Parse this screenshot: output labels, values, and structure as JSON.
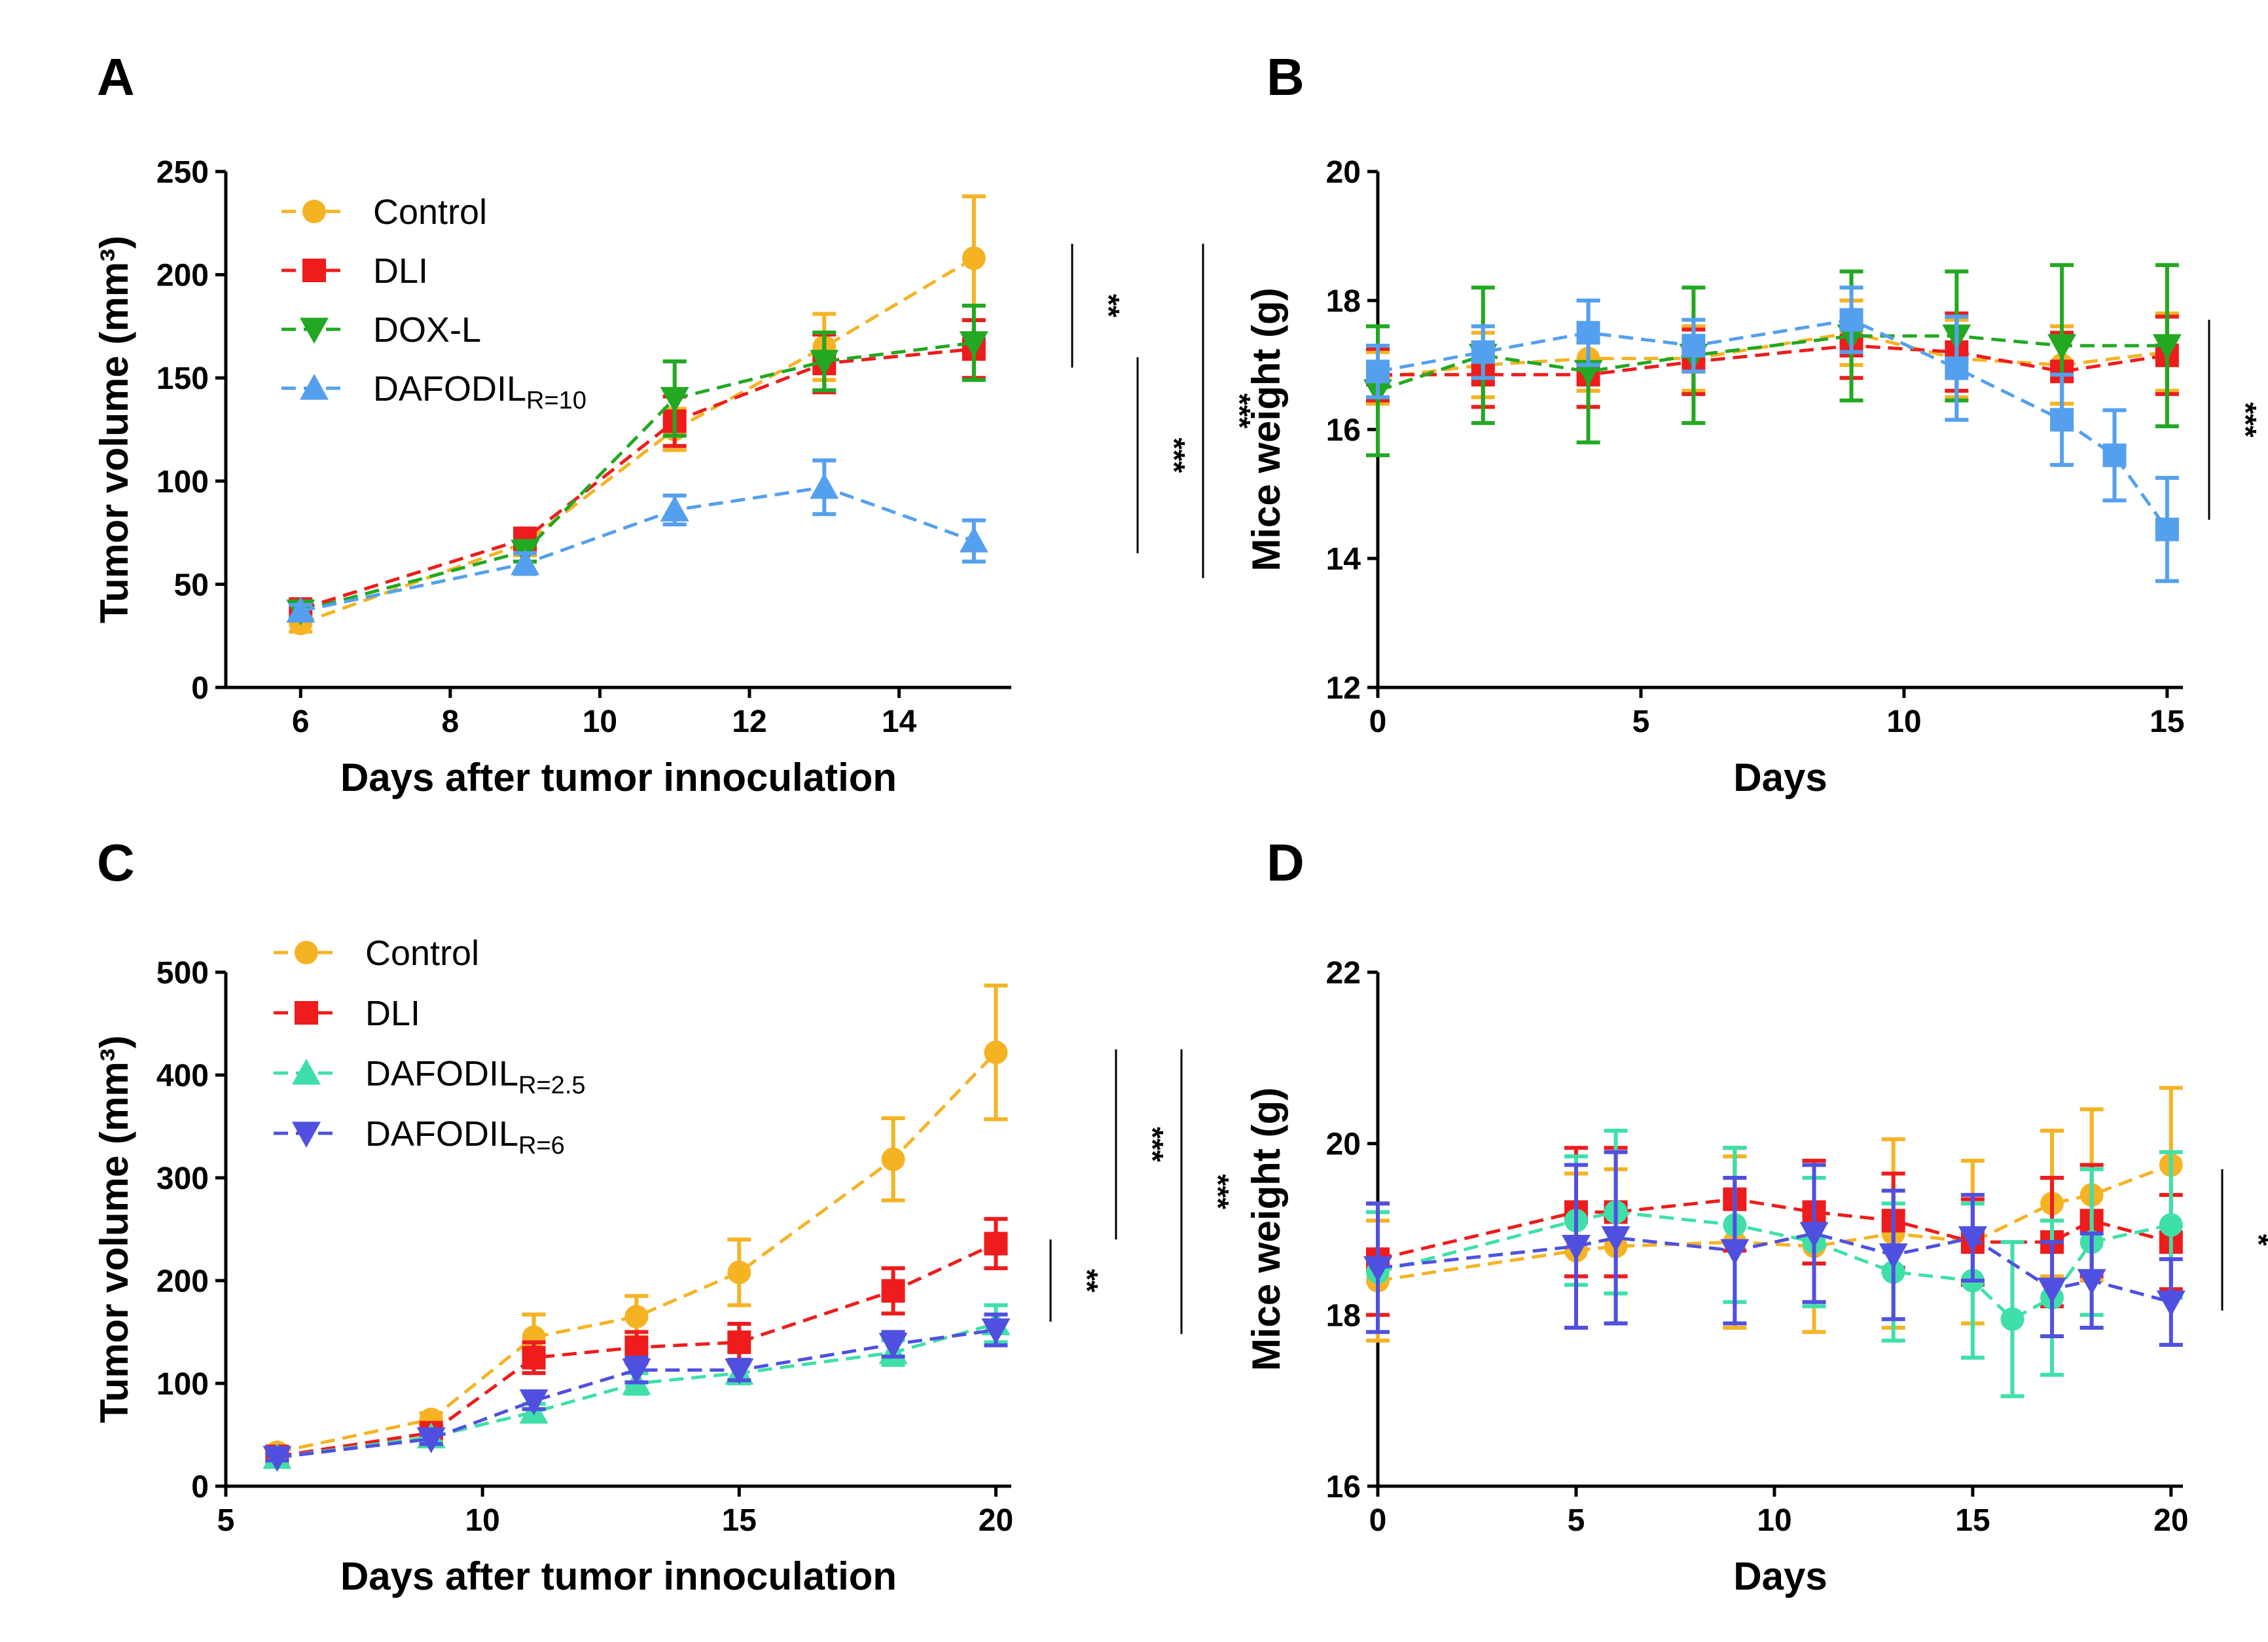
{
  "chart_data": [
    {
      "panel_label": "A",
      "type": "line",
      "xlabel": "Days after tumor innoculation",
      "ylabel": "Tumor volume (mm³)",
      "xlim": [
        5,
        15.5
      ],
      "ylim": [
        0,
        250
      ],
      "xticks": [
        6,
        8,
        10,
        12,
        14
      ],
      "yticks": [
        0,
        50,
        100,
        150,
        200,
        250
      ],
      "legend_position": "top-left",
      "series": [
        {
          "name": "Control",
          "color": "#F5B324",
          "marker": "circle",
          "x": [
            6,
            9,
            11,
            13,
            15
          ],
          "y": [
            31,
            70,
            125,
            165,
            208
          ],
          "err": [
            4,
            6,
            10,
            16,
            30
          ]
        },
        {
          "name": "DLI",
          "color": "#EE1C1C",
          "marker": "square",
          "x": [
            6,
            9,
            11,
            13,
            15
          ],
          "y": [
            38,
            72,
            129,
            157,
            164
          ],
          "err": [
            4,
            5,
            12,
            14,
            14
          ]
        },
        {
          "name": "DOX-L",
          "color": "#22A822",
          "marker": "triangle-down",
          "x": [
            6,
            9,
            11,
            13,
            15
          ],
          "y": [
            37,
            66,
            140,
            158,
            167
          ],
          "err": [
            4,
            5,
            18,
            14,
            18
          ]
        },
        {
          "name": "DAFODIL",
          "name_sub": "R=10",
          "color": "#55A0EE",
          "marker": "triangle-up",
          "x": [
            6,
            9,
            11,
            13,
            15
          ],
          "y": [
            37,
            60,
            86,
            97,
            71
          ],
          "err": [
            3,
            5,
            7,
            13,
            10
          ]
        }
      ],
      "significance": [
        {
          "label": "**",
          "y_range": [
            155,
            215
          ],
          "offset": 0
        },
        {
          "label": "***",
          "y_range": [
            65,
            160
          ],
          "offset": 1
        },
        {
          "label": "***",
          "y_range": [
            53,
            215
          ],
          "offset": 2
        }
      ]
    },
    {
      "panel_label": "B",
      "type": "line",
      "xlabel": "Days",
      "ylabel": "Mice weight (g)",
      "xlim": [
        0,
        15.3
      ],
      "ylim": [
        12,
        20
      ],
      "xticks": [
        0,
        5,
        10,
        15
      ],
      "yticks": [
        12,
        14,
        16,
        18,
        20
      ],
      "series": [
        {
          "name": "Control",
          "color": "#F5B324",
          "marker": "circle",
          "x": [
            0,
            2,
            4,
            6,
            9,
            11,
            13,
            15
          ],
          "y": [
            16.8,
            17.0,
            17.1,
            17.1,
            17.5,
            17.1,
            17.0,
            17.2
          ],
          "err": [
            0.4,
            0.5,
            0.5,
            0.5,
            0.5,
            0.6,
            0.6,
            0.6
          ]
        },
        {
          "name": "DLI",
          "color": "#EE1C1C",
          "marker": "square",
          "x": [
            0,
            2,
            4,
            6,
            9,
            11,
            13,
            15
          ],
          "y": [
            16.85,
            16.85,
            16.85,
            17.05,
            17.3,
            17.2,
            16.9,
            17.15
          ],
          "err": [
            0.4,
            0.5,
            0.5,
            0.5,
            0.5,
            0.6,
            0.6,
            0.6
          ]
        },
        {
          "name": "DOX-L",
          "color": "#22A822",
          "marker": "triangle-down",
          "x": [
            0,
            2,
            4,
            6,
            9,
            11,
            13,
            15
          ],
          "y": [
            16.6,
            17.15,
            16.9,
            17.15,
            17.45,
            17.45,
            17.3,
            17.3
          ],
          "err": [
            1.0,
            1.05,
            1.1,
            1.05,
            1.0,
            1.0,
            1.25,
            1.25
          ]
        },
        {
          "name": "DAFODIL",
          "name_sub": "R=10",
          "color": "#55A0EE",
          "marker": "square",
          "x": [
            0,
            2,
            4,
            6,
            9,
            11,
            13,
            14,
            15
          ],
          "y": [
            16.9,
            17.2,
            17.5,
            17.3,
            17.7,
            16.95,
            16.15,
            15.6,
            14.45
          ],
          "err": [
            0.4,
            0.4,
            0.5,
            0.4,
            0.5,
            0.8,
            0.7,
            0.7,
            0.8
          ]
        }
      ],
      "significance": [
        {
          "label": "***",
          "y_range": [
            14.6,
            17.7
          ],
          "offset": 0
        }
      ]
    },
    {
      "panel_label": "C",
      "type": "line",
      "xlabel": "Days after tumor innoculation",
      "ylabel": "Tumor volume (mm³)",
      "xlim": [
        5,
        20.3
      ],
      "ylim": [
        0,
        500
      ],
      "xticks": [
        5,
        10,
        15,
        20
      ],
      "yticks": [
        0,
        100,
        200,
        300,
        400,
        500
      ],
      "legend_position": "top-left",
      "series": [
        {
          "name": "Control",
          "color": "#F5B324",
          "marker": "circle",
          "x": [
            6,
            9,
            11,
            13,
            15,
            18,
            20
          ],
          "y": [
            33,
            65,
            145,
            165,
            208,
            318,
            422
          ],
          "err": [
            4,
            6,
            22,
            20,
            32,
            40,
            65
          ]
        },
        {
          "name": "DLI",
          "color": "#EE1C1C",
          "marker": "square",
          "x": [
            6,
            9,
            11,
            13,
            15,
            18,
            20
          ],
          "y": [
            29,
            52,
            125,
            135,
            140,
            190,
            236
          ],
          "err": [
            4,
            5,
            15,
            15,
            18,
            22,
            24
          ]
        },
        {
          "name": "DAFODIL",
          "name_sub": "R=2.5",
          "color": "#3FE0A8",
          "marker": "triangle-up",
          "x": [
            6,
            9,
            11,
            13,
            15,
            18,
            20
          ],
          "y": [
            28,
            48,
            72,
            100,
            110,
            130,
            158
          ],
          "err": [
            3,
            5,
            8,
            10,
            10,
            12,
            18
          ]
        },
        {
          "name": "DAFODIL",
          "name_sub": "R=6",
          "color": "#5050E0",
          "marker": "triangle-down",
          "x": [
            6,
            9,
            11,
            13,
            15,
            18,
            20
          ],
          "y": [
            28,
            46,
            83,
            113,
            113,
            138,
            152
          ],
          "err": [
            3,
            5,
            8,
            12,
            10,
            12,
            15
          ]
        }
      ],
      "significance": [
        {
          "label": "**",
          "y_range": [
            160,
            240
          ],
          "offset": 0
        },
        {
          "label": "***",
          "y_range": [
            240,
            425
          ],
          "offset": 1
        },
        {
          "label": "***",
          "y_range": [
            148,
            425
          ],
          "offset": 2
        }
      ]
    },
    {
      "panel_label": "D",
      "type": "line",
      "xlabel": "Days",
      "ylabel": "Mice weight (g)",
      "xlim": [
        0,
        20.3
      ],
      "ylim": [
        16,
        22
      ],
      "xticks": [
        0,
        5,
        10,
        15,
        20
      ],
      "yticks": [
        16,
        18,
        20,
        22
      ],
      "series": [
        {
          "name": "Control",
          "color": "#F5B324",
          "marker": "circle",
          "x": [
            0,
            5,
            6,
            9,
            11,
            13,
            15,
            17,
            18,
            20
          ],
          "y": [
            18.4,
            18.75,
            18.8,
            18.85,
            18.8,
            18.95,
            18.85,
            19.3,
            19.4,
            19.75
          ],
          "err": [
            0.7,
            0.9,
            0.9,
            1.0,
            1.0,
            1.1,
            0.95,
            0.85,
            1.0,
            0.9
          ]
        },
        {
          "name": "DLI",
          "color": "#EE1C1C",
          "marker": "square",
          "x": [
            0,
            5,
            6,
            9,
            11,
            13,
            15,
            17,
            18,
            20
          ],
          "y": [
            18.65,
            19.2,
            19.2,
            19.35,
            19.2,
            19.1,
            18.85,
            18.85,
            19.1,
            18.85
          ],
          "err": [
            0.65,
            0.75,
            0.75,
            0.6,
            0.6,
            0.55,
            0.5,
            0.75,
            0.65,
            0.55
          ]
        },
        {
          "name": "DAFODIL",
          "name_sub": "R=2.5",
          "color": "#3FE0A8",
          "marker": "circle",
          "x": [
            0,
            5,
            6,
            9,
            11,
            13,
            15,
            16,
            17,
            18,
            20
          ],
          "y": [
            18.5,
            19.1,
            19.2,
            19.05,
            18.85,
            18.5,
            18.4,
            17.95,
            18.2,
            18.85,
            19.05
          ],
          "err": [
            0.7,
            0.75,
            0.95,
            0.9,
            0.75,
            0.8,
            0.9,
            0.9,
            0.9,
            0.85,
            0.85
          ]
        },
        {
          "name": "DAFODIL",
          "name_sub": "R=6",
          "color": "#5050E0",
          "marker": "triangle-down",
          "x": [
            0,
            5,
            6,
            9,
            11,
            13,
            15,
            17,
            18,
            20
          ],
          "y": [
            18.55,
            18.8,
            18.9,
            18.75,
            18.95,
            18.7,
            18.9,
            18.3,
            18.4,
            18.15
          ],
          "err": [
            0.75,
            0.95,
            1.0,
            0.85,
            0.8,
            0.75,
            0.5,
            0.55,
            0.55,
            0.5
          ]
        }
      ],
      "significance": [
        {
          "label": "*",
          "y_range": [
            18.05,
            19.7
          ],
          "offset": 0
        }
      ]
    }
  ]
}
